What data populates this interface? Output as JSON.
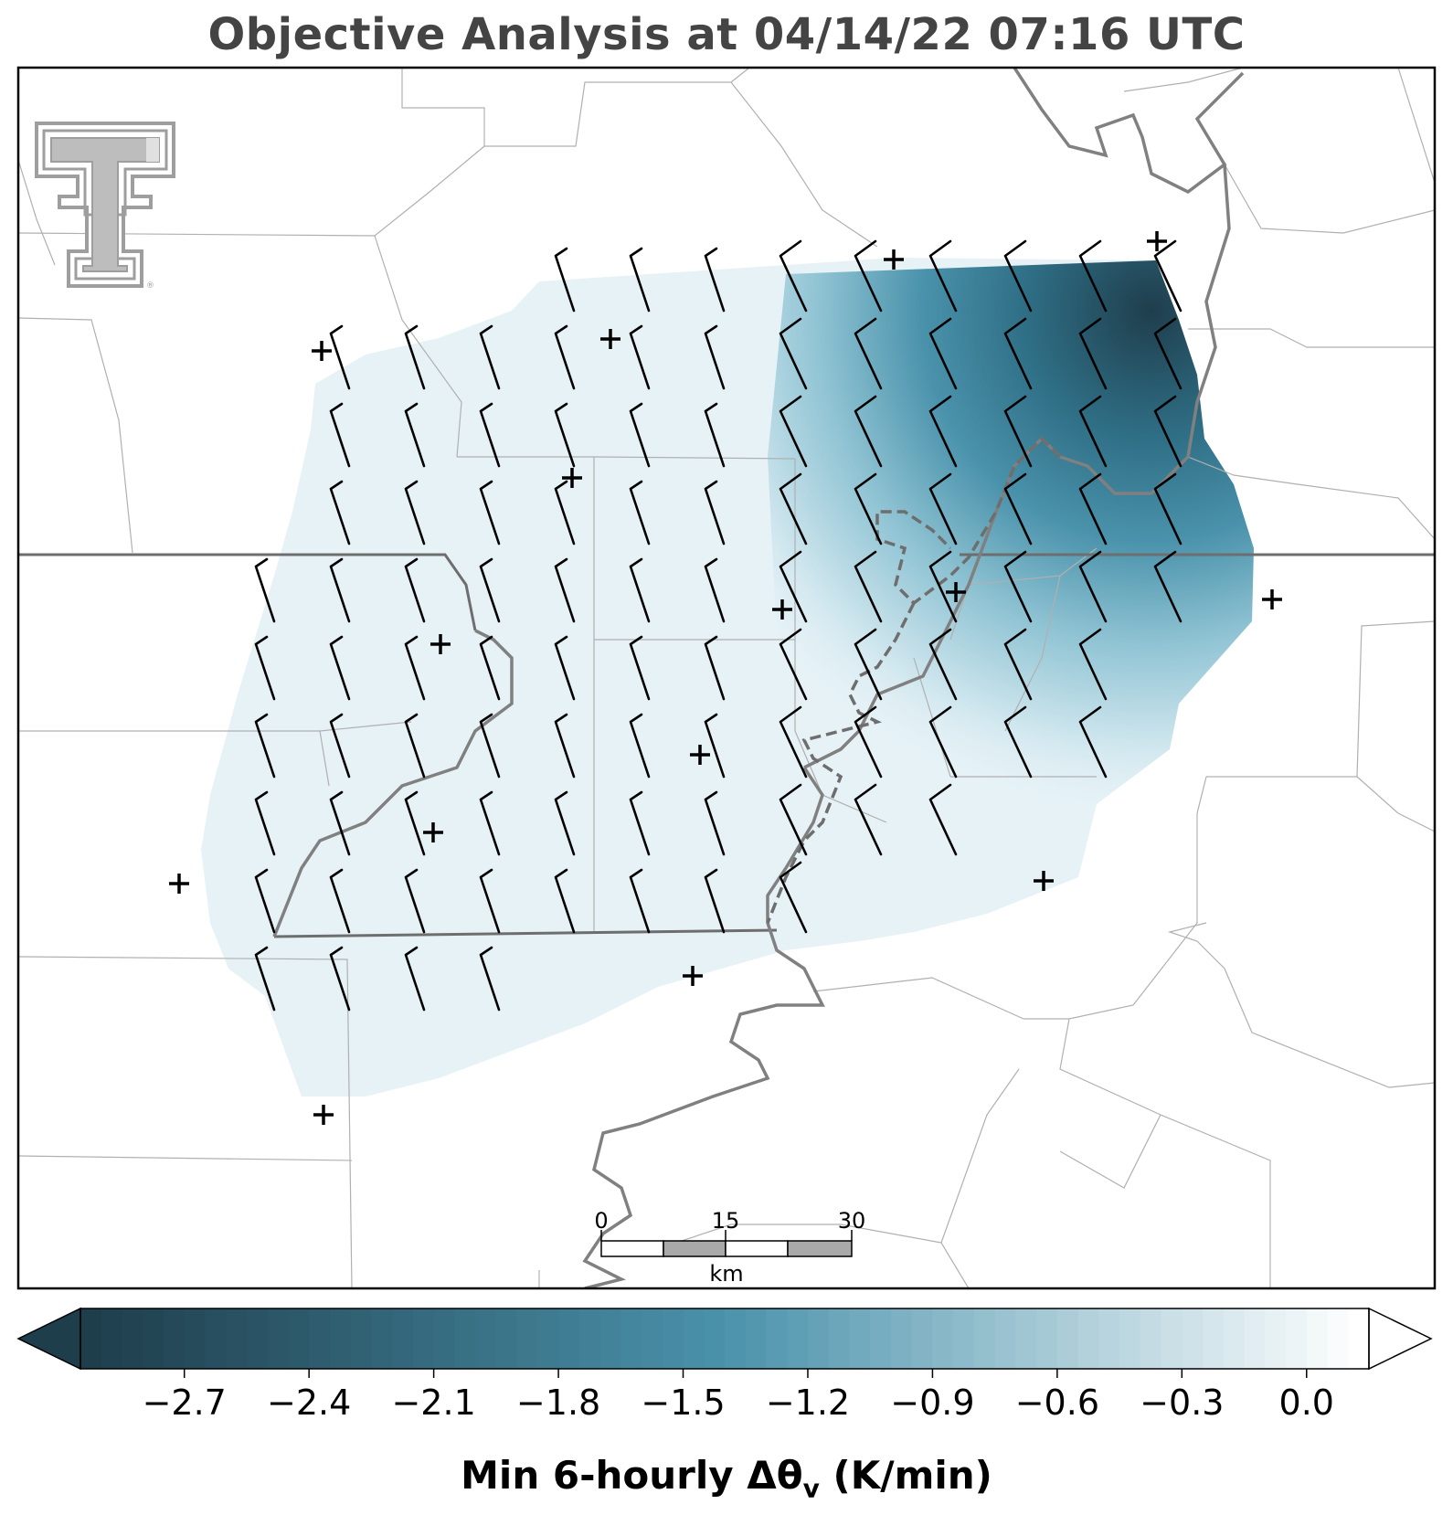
{
  "title": "Objective Analysis at 04/14/22 07:16 UTC",
  "colorbar": {
    "label_main": "Min 6-hourly Δθ",
    "label_sub": "v",
    "label_units": " (K/min)",
    "min": -2.95,
    "max": 0.15,
    "ticks": [
      "−2.7",
      "−2.4",
      "−2.1",
      "−1.8",
      "−1.5",
      "−1.2",
      "−0.9",
      "−0.6",
      "−0.3",
      "0.0"
    ],
    "tick_values": [
      -2.7,
      -2.4,
      -2.1,
      -1.8,
      -1.5,
      -1.2,
      -0.9,
      -0.6,
      -0.3,
      0.0
    ],
    "color_dark": "#1f3e4c",
    "color_mid": "#4a92ab",
    "color_light": "#ffffff",
    "extend": "both"
  },
  "scale_bar": {
    "labels": [
      "0",
      "15",
      "30"
    ],
    "unit": "km"
  },
  "logo": {
    "name": "texas-tech-double-t-logo",
    "color": "#9e9e9e"
  },
  "colors": {
    "county_lines": "#b0b0b0",
    "state_lines": "#6e6e6e",
    "river": "#808080",
    "barbs": "#000000",
    "stations": "#000000",
    "frame": "#000000"
  }
}
